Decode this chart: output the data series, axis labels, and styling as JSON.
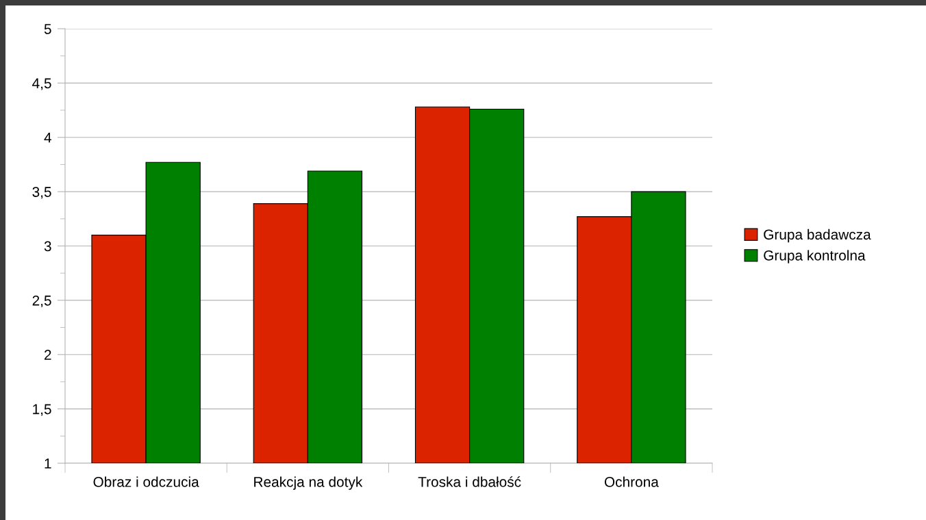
{
  "chart_data": {
    "type": "bar",
    "categories": [
      "Obraz i odczucia",
      "Reakcja na dotyk",
      "Troska i dbałość",
      "Ochrona"
    ],
    "series": [
      {
        "name": "Grupa badawcza",
        "color": "#dc2300",
        "values": [
          3.1,
          3.39,
          4.28,
          3.27
        ]
      },
      {
        "name": "Grupa kontrolna",
        "color": "#008000",
        "values": [
          3.77,
          3.69,
          4.26,
          3.5
        ]
      }
    ],
    "ylim": [
      1,
      5
    ],
    "yticks": [
      1,
      {
        "value": 1.5,
        "label": "1,5"
      },
      2,
      {
        "value": 2.5,
        "label": "2,5"
      },
      3,
      {
        "value": 3.5,
        "label": "3,5"
      },
      4,
      {
        "value": 4.5,
        "label": "4,5"
      },
      5
    ],
    "grid": "y",
    "legend": "right"
  }
}
